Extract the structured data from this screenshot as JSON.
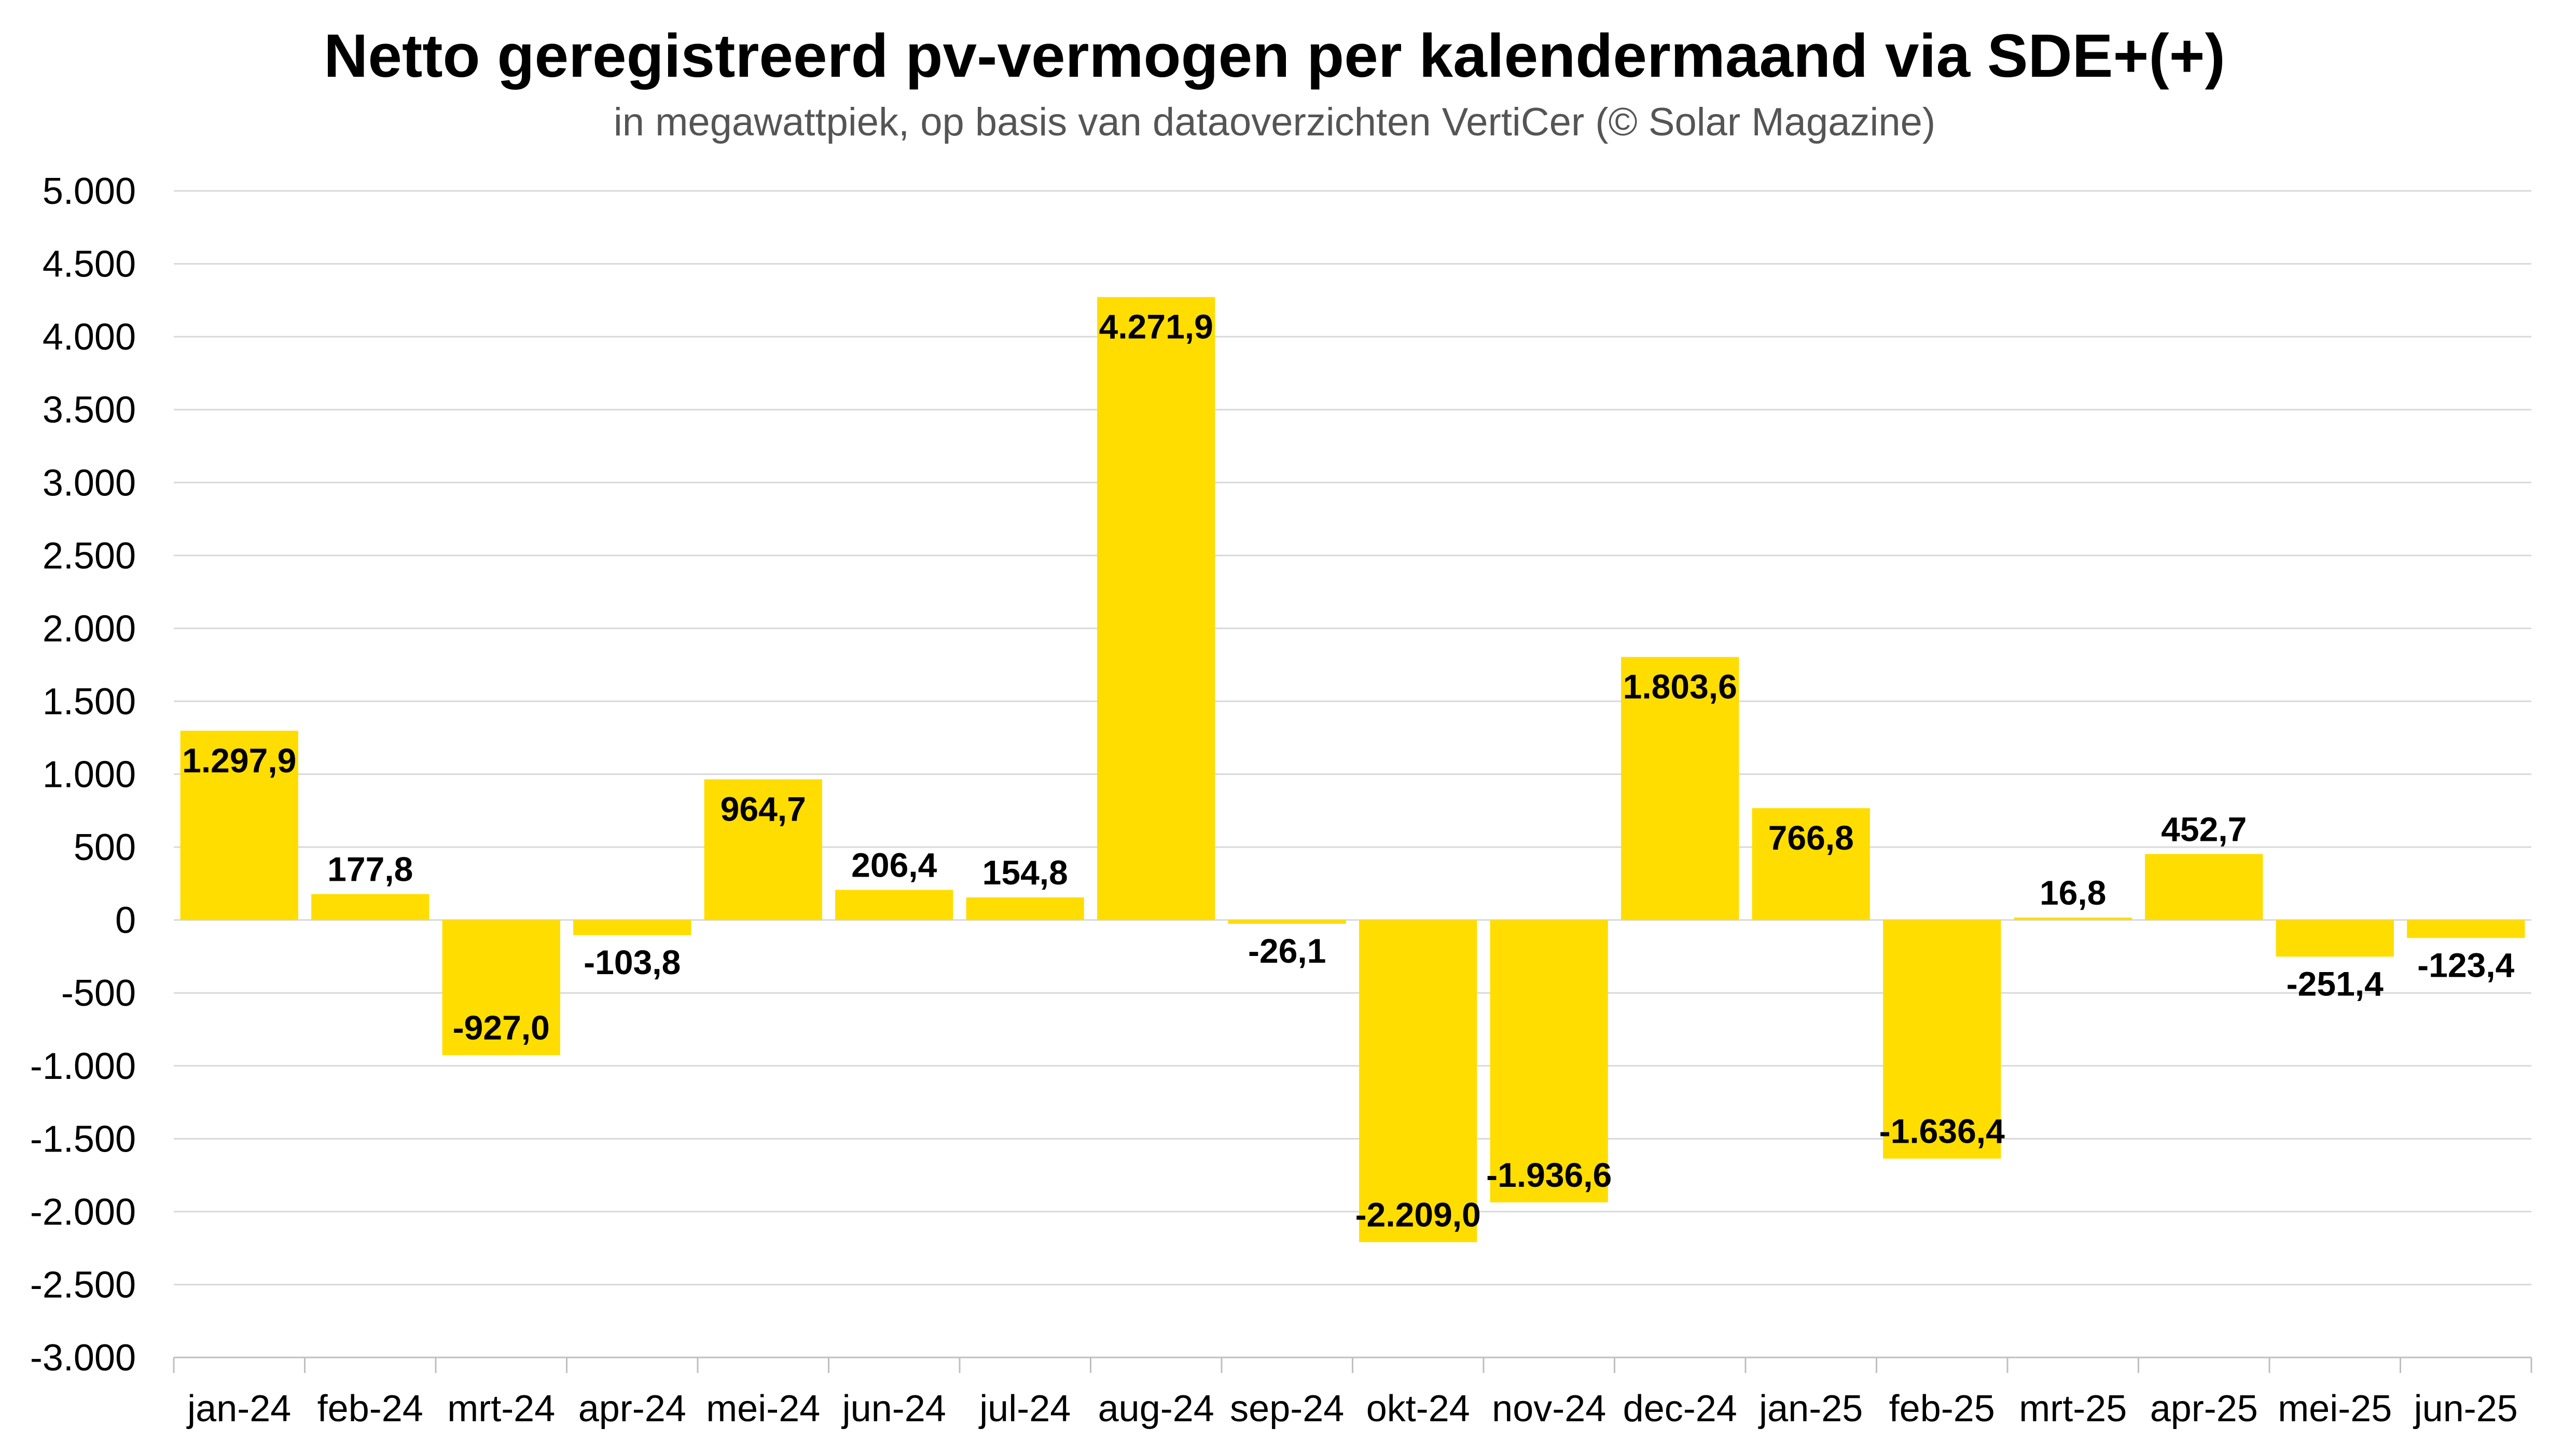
{
  "chart_data": {
    "type": "bar",
    "title": "Netto geregistreerd pv-vermogen per kalendermaand via SDE+(+)",
    "subtitle": "in megawattpiek, op basis van dataoverzichten VertiCer (© Solar Magazine)",
    "xlabel": "",
    "ylabel": "",
    "ylim": [
      -3000,
      5000
    ],
    "grid": true,
    "legend": "none",
    "bar_color": "#FFDD00",
    "categories": [
      "jan-24",
      "feb-24",
      "mrt-24",
      "apr-24",
      "mei-24",
      "jun-24",
      "jul-24",
      "aug-24",
      "sep-24",
      "okt-24",
      "nov-24",
      "dec-24",
      "jan-25",
      "feb-25",
      "mrt-25",
      "apr-25",
      "mei-25",
      "jun-25"
    ],
    "values": [
      1297.9,
      177.8,
      -927.0,
      -103.8,
      964.7,
      206.4,
      154.8,
      4271.9,
      -26.1,
      -2209.0,
      -1936.6,
      1803.6,
      766.8,
      -1636.4,
      16.8,
      452.7,
      -251.4,
      -123.4
    ],
    "data_labels": [
      "1.297,9",
      "177,8",
      "-927,0",
      "-103,8",
      "964,7",
      "206,4",
      "154,8",
      "4.271,9",
      "-26,1",
      "-2.209,0",
      "-1.936,6",
      "1.803,6",
      "766,8",
      "-1.636,4",
      "16,8",
      "452,7",
      "-251,4",
      "-123,4"
    ],
    "y_ticks": [
      5000,
      4500,
      4000,
      3500,
      3000,
      2500,
      2000,
      1500,
      1000,
      500,
      0,
      -500,
      -1000,
      -1500,
      -2000,
      -2500,
      -3000
    ],
    "y_tick_labels": [
      "5.000",
      "4.500",
      "4.000",
      "3.500",
      "3.000",
      "2.500",
      "2.000",
      "1.500",
      "1.000",
      "500",
      "0",
      "-500",
      "-1.000",
      "-1.500",
      "-2.000",
      "-2.500",
      "-3.000"
    ]
  }
}
